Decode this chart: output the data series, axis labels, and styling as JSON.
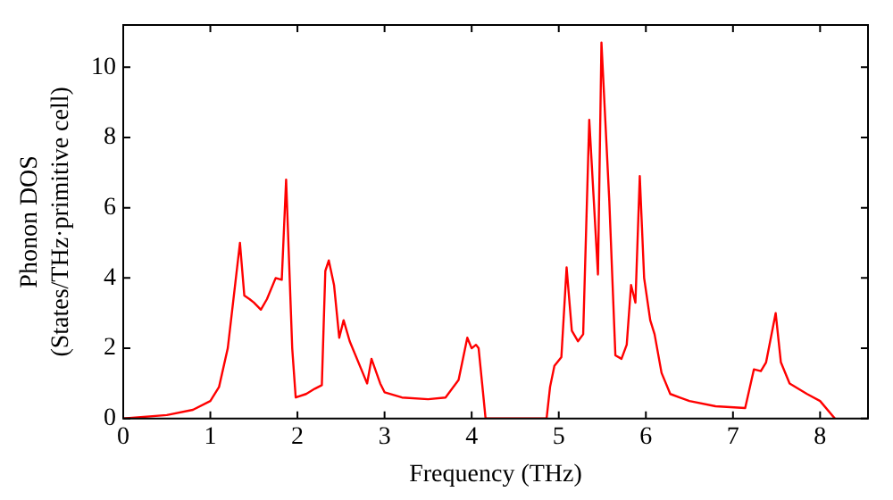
{
  "chart_data": {
    "type": "line",
    "xlabel": "Frequency (THz)",
    "ylabel": "Phonon DOS\n(States/THz·primitive cell)",
    "xlim": [
      0,
      8.55
    ],
    "ylim": [
      0,
      11.2
    ],
    "xticks": [
      0,
      1,
      2,
      3,
      4,
      5,
      6,
      7,
      8
    ],
    "yticks": [
      0,
      2,
      4,
      6,
      8,
      10
    ],
    "grid": false,
    "legend": false,
    "marker": "none",
    "line_style": "solid",
    "series": [
      {
        "color": "#ff0000",
        "x": [
          0,
          0.5,
          0.8,
          1.0,
          1.1,
          1.2,
          1.27,
          1.34,
          1.39,
          1.45,
          1.5,
          1.58,
          1.65,
          1.75,
          1.82,
          1.87,
          1.94,
          1.98,
          2.1,
          2.2,
          2.28,
          2.32,
          2.36,
          2.42,
          2.48,
          2.53,
          2.6,
          2.75,
          2.8,
          2.85,
          2.95,
          3.0,
          3.2,
          3.5,
          3.7,
          3.85,
          3.95,
          4.0,
          4.05,
          4.08,
          4.12,
          4.16,
          4.86,
          4.9,
          4.95,
          5.03,
          5.09,
          5.15,
          5.22,
          5.28,
          5.35,
          5.45,
          5.49,
          5.58,
          5.65,
          5.72,
          5.78,
          5.83,
          5.88,
          5.93,
          5.98,
          6.05,
          6.1,
          6.18,
          6.28,
          6.5,
          6.8,
          7.14,
          7.24,
          7.32,
          7.38,
          7.49,
          7.55,
          7.65,
          7.85,
          8.0,
          8.17
        ],
        "values": [
          0,
          0.1,
          0.25,
          0.5,
          0.9,
          2.0,
          3.5,
          5.0,
          3.5,
          3.4,
          3.3,
          3.1,
          3.4,
          4.0,
          3.95,
          6.8,
          2.0,
          0.6,
          0.7,
          0.85,
          0.95,
          4.2,
          4.5,
          3.8,
          2.3,
          2.8,
          2.2,
          1.3,
          1.0,
          1.7,
          1.0,
          0.75,
          0.6,
          0.55,
          0.6,
          1.1,
          2.3,
          2.0,
          2.1,
          2.0,
          1.0,
          0,
          0,
          0.9,
          1.5,
          1.75,
          4.3,
          2.5,
          2.2,
          2.4,
          8.5,
          4.1,
          10.7,
          6.2,
          1.8,
          1.7,
          2.1,
          3.8,
          3.3,
          6.9,
          4.0,
          2.8,
          2.4,
          1.3,
          0.7,
          0.5,
          0.35,
          0.3,
          1.4,
          1.35,
          1.6,
          3.0,
          1.6,
          1.0,
          0.7,
          0.5,
          0
        ]
      }
    ]
  }
}
